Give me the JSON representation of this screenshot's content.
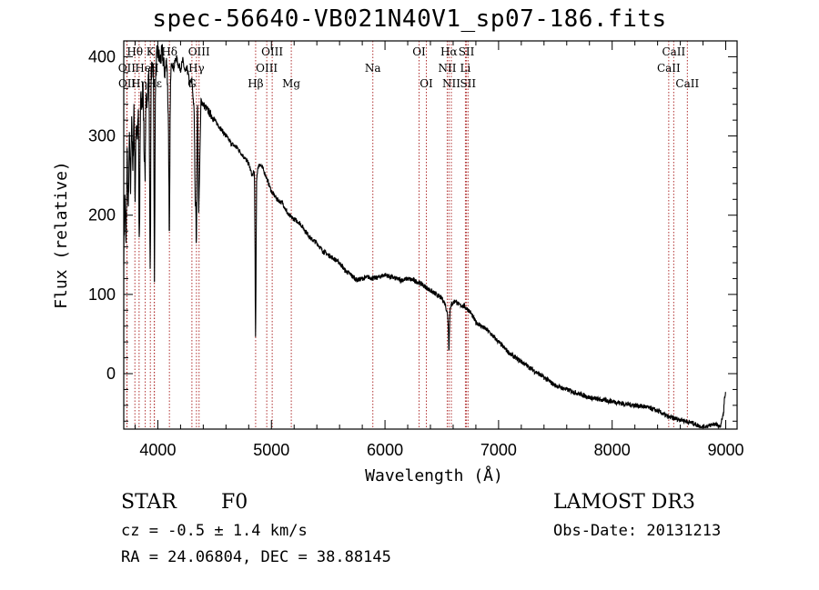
{
  "header": {
    "title": "spec-56640-VB021N40V1_sp07-186.fits"
  },
  "info": {
    "object_class": "STAR",
    "spectral_type": "F0",
    "survey": "LAMOST DR3",
    "velocity": "cz = -0.5 ± 1.4 km/s",
    "obs_date": "Obs-Date: 20131213",
    "coords": "RA =  24.06804, DEC =  38.88145"
  },
  "colors": {
    "spectrum": "#000000",
    "lines": "#b03030",
    "axes": "#000000"
  },
  "chart_data": {
    "type": "line",
    "title": "spec-56640-VB021N40V1_sp07-186.fits",
    "xlabel": "Wavelength (Å)",
    "ylabel": "Flux (relative)",
    "xlim": [
      3700,
      9100
    ],
    "ylim": [
      -70,
      420
    ],
    "xticks": [
      4000,
      5000,
      6000,
      7000,
      8000,
      9000
    ],
    "yticks": [
      0,
      100,
      200,
      300,
      400
    ],
    "series": [
      {
        "name": "flux",
        "x": [
          3700,
          3710,
          3720,
          3730,
          3740,
          3750,
          3760,
          3770,
          3780,
          3790,
          3800,
          3810,
          3820,
          3830,
          3840,
          3850,
          3860,
          3870,
          3880,
          3890,
          3900,
          3910,
          3920,
          3930,
          3940,
          3950,
          3960,
          3970,
          3980,
          3990,
          4000,
          4020,
          4040,
          4060,
          4080,
          4100,
          4110,
          4120,
          4140,
          4160,
          4180,
          4200,
          4220,
          4240,
          4260,
          4280,
          4300,
          4320,
          4330,
          4340,
          4350,
          4360,
          4380,
          4400,
          4450,
          4500,
          4550,
          4600,
          4650,
          4700,
          4750,
          4800,
          4830,
          4850,
          4860,
          4870,
          4880,
          4900,
          4920,
          4950,
          5000,
          5050,
          5100,
          5150,
          5200,
          5250,
          5300,
          5350,
          5400,
          5450,
          5500,
          5550,
          5600,
          5650,
          5700,
          5750,
          5800,
          5850,
          5900,
          5950,
          6000,
          6050,
          6100,
          6150,
          6200,
          6250,
          6300,
          6350,
          6400,
          6450,
          6500,
          6530,
          6550,
          6563,
          6575,
          6590,
          6620,
          6650,
          6700,
          6750,
          6800,
          6900,
          7000,
          7100,
          7200,
          7300,
          7400,
          7500,
          7600,
          7700,
          7800,
          7900,
          8000,
          8100,
          8200,
          8300,
          8400,
          8500,
          8600,
          8650,
          8700,
          8750,
          8800,
          8850,
          8900,
          8950,
          8980,
          8990,
          9000
        ],
        "values": [
          150,
          225,
          160,
          280,
          200,
          300,
          230,
          330,
          250,
          340,
          220,
          320,
          300,
          350,
          240,
          360,
          330,
          370,
          270,
          380,
          340,
          360,
          380,
          240,
          390,
          380,
          400,
          260,
          370,
          400,
          405,
          395,
          405,
          380,
          395,
          280,
          360,
          395,
          385,
          400,
          390,
          385,
          395,
          380,
          385,
          365,
          370,
          330,
          210,
          330,
          340,
          200,
          345,
          340,
          330,
          320,
          310,
          300,
          290,
          285,
          275,
          265,
          250,
          255,
          150,
          245,
          260,
          265,
          260,
          250,
          230,
          220,
          215,
          200,
          195,
          190,
          180,
          170,
          165,
          155,
          150,
          145,
          140,
          130,
          125,
          118,
          120,
          122,
          120,
          122,
          125,
          122,
          120,
          118,
          120,
          118,
          115,
          110,
          105,
          100,
          95,
          88,
          75,
          60,
          85,
          88,
          92,
          87,
          85,
          78,
          65,
          55,
          40,
          25,
          15,
          5,
          -5,
          -15,
          -20,
          -25,
          -30,
          -33,
          -35,
          -38,
          -40,
          -42,
          -47,
          -55,
          -58,
          -60,
          -62,
          -65,
          -68,
          -66,
          -63,
          -68,
          -50,
          -30,
          -25
        ],
        "features": [
          {
            "wavelength": 3835,
            "depth": 120
          },
          {
            "wavelength": 3889,
            "depth": 110
          },
          {
            "wavelength": 3934,
            "depth": 150
          },
          {
            "wavelength": 3970,
            "depth": 150
          },
          {
            "wavelength": 4102,
            "depth": 120
          },
          {
            "wavelength": 4340,
            "depth": 160
          },
          {
            "wavelength": 4861,
            "depth": 110
          },
          {
            "wavelength": 6563,
            "depth": 30
          }
        ]
      }
    ],
    "lines": [
      {
        "label": "Hθ",
        "wavelength": 3798,
        "row": 0
      },
      {
        "label": "K",
        "wavelength": 3934,
        "row": 0
      },
      {
        "label": "Hδ",
        "wavelength": 4102,
        "row": 0
      },
      {
        "label": "OIII",
        "wavelength": 4363,
        "row": 0
      },
      {
        "label": "OIII",
        "wavelength": 5007,
        "row": 0
      },
      {
        "label": "OI",
        "wavelength": 6300,
        "row": 0
      },
      {
        "label": "Hα",
        "wavelength": 6563,
        "row": 0
      },
      {
        "label": "SII",
        "wavelength": 6717,
        "row": 0
      },
      {
        "label": "CaII",
        "wavelength": 8542,
        "row": 0
      },
      {
        "label": "OII",
        "wavelength": 3727,
        "row": 1
      },
      {
        "label": "HeI",
        "wavelength": 3889,
        "row": 1
      },
      {
        "label": "H",
        "wavelength": 3968,
        "row": 1
      },
      {
        "label": "Hγ",
        "wavelength": 4340,
        "row": 1
      },
      {
        "label": "OIII",
        "wavelength": 4959,
        "row": 1
      },
      {
        "label": "Na",
        "wavelength": 5893,
        "row": 1
      },
      {
        "label": "NII",
        "wavelength": 6548,
        "row": 1
      },
      {
        "label": "Li",
        "wavelength": 6708,
        "row": 1
      },
      {
        "label": "CaII",
        "wavelength": 8498,
        "row": 1
      },
      {
        "label": "OII",
        "wavelength": 3729,
        "row": 2
      },
      {
        "label": "Hη",
        "wavelength": 3835,
        "row": 2
      },
      {
        "label": "Hε",
        "wavelength": 3970,
        "row": 2
      },
      {
        "label": "G",
        "wavelength": 4300,
        "row": 2
      },
      {
        "label": "Hβ",
        "wavelength": 4861,
        "row": 2
      },
      {
        "label": "Mg",
        "wavelength": 5175,
        "row": 2
      },
      {
        "label": "OI",
        "wavelength": 6364,
        "row": 2
      },
      {
        "label": "NII",
        "wavelength": 6584,
        "row": 2
      },
      {
        "label": "SII",
        "wavelength": 6731,
        "row": 2
      },
      {
        "label": "CaII",
        "wavelength": 8662,
        "row": 2
      }
    ]
  }
}
